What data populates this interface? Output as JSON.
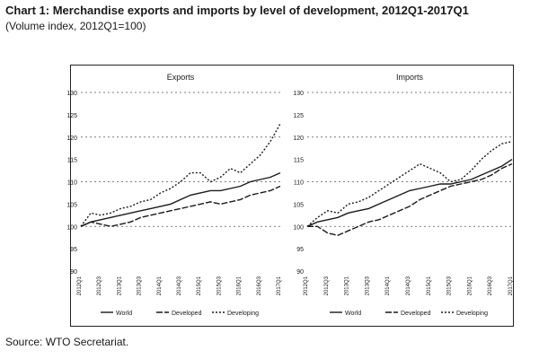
{
  "title": "Chart 1: Merchandise exports and imports by level of development, 2012Q1-2017Q1",
  "subtitle": "(Volume index, 2012Q1=100)",
  "source": "Source: WTO Secretariat.",
  "colors": {
    "line": "#1a1a1a",
    "grid": "#555555",
    "frame": "#222222"
  },
  "chart_data": [
    {
      "type": "line",
      "title": "Exports",
      "xlabel": "",
      "ylabel": "",
      "ylim": [
        90,
        130
      ],
      "yticks": [
        90,
        95,
        100,
        105,
        110,
        115,
        120,
        125,
        130
      ],
      "ytick_labels": [
        "90",
        "95",
        "100",
        "105",
        "110",
        "115",
        "120",
        "125",
        "130"
      ],
      "grid": true,
      "categories": [
        "2012Q1",
        "2012Q2",
        "2012Q3",
        "2012Q4",
        "2013Q1",
        "2013Q2",
        "2013Q3",
        "2013Q4",
        "2014Q1",
        "2014Q2",
        "2014Q3",
        "2014Q4",
        "2015Q1",
        "2015Q2",
        "2015Q3",
        "2015Q4",
        "2016Q1",
        "2016Q2",
        "2016Q3",
        "2016Q4",
        "2017Q1"
      ],
      "xtick_labels": [
        "2012Q1",
        "2012Q3",
        "2013Q1",
        "2013Q3",
        "2014Q1",
        "2014Q3",
        "2015Q1",
        "2015Q3",
        "2016Q1",
        "2016Q3",
        "2017Q1"
      ],
      "legend": "bottom",
      "series": [
        {
          "name": "World",
          "values": [
            100,
            101,
            101.5,
            102,
            102.5,
            103,
            103.5,
            104,
            104.5,
            105,
            106,
            107,
            107.5,
            108,
            108,
            108.5,
            109,
            110,
            110.5,
            111,
            112
          ]
        },
        {
          "name": "Developed",
          "values": [
            100,
            101,
            100.5,
            100,
            100.5,
            101,
            102,
            102.5,
            103,
            103.5,
            104,
            104.5,
            105,
            105.5,
            105,
            105.5,
            106,
            107,
            107.5,
            108,
            109
          ]
        },
        {
          "name": "Developing",
          "values": [
            100,
            103,
            102.5,
            103,
            104,
            104.5,
            105.5,
            106,
            107.5,
            108.5,
            110,
            112,
            112,
            110,
            111,
            113,
            112,
            114,
            116,
            119,
            123
          ]
        }
      ]
    },
    {
      "type": "line",
      "title": "Imports",
      "xlabel": "",
      "ylabel": "",
      "ylim": [
        90,
        130
      ],
      "yticks": [
        90,
        95,
        100,
        105,
        110,
        115,
        120,
        125,
        130
      ],
      "ytick_labels": [
        "90",
        "95",
        "100",
        "105",
        "110",
        "115",
        "120",
        "125",
        "130"
      ],
      "grid": true,
      "categories": [
        "2012Q1",
        "2012Q2",
        "2012Q3",
        "2012Q4",
        "2013Q1",
        "2013Q2",
        "2013Q3",
        "2013Q4",
        "2014Q1",
        "2014Q2",
        "2014Q3",
        "2014Q4",
        "2015Q1",
        "2015Q2",
        "2015Q3",
        "2015Q4",
        "2016Q1",
        "2016Q2",
        "2016Q3",
        "2016Q4",
        "2017Q1"
      ],
      "xtick_labels": [
        "2012Q1",
        "2012Q3",
        "2013Q1",
        "2013Q3",
        "2014Q1",
        "2014Q3",
        "2015Q1",
        "2015Q3",
        "2016Q1",
        "2016Q3",
        "2017Q1"
      ],
      "legend": "bottom",
      "series": [
        {
          "name": "World",
          "values": [
            100,
            101,
            101.5,
            102,
            103,
            103.5,
            104,
            105,
            106,
            107,
            108,
            108.5,
            109,
            109.5,
            109.5,
            110,
            110.5,
            111.5,
            112.5,
            113.5,
            115
          ]
        },
        {
          "name": "Developed",
          "values": [
            100,
            100,
            98.5,
            98,
            99,
            100,
            101,
            101.5,
            102.5,
            103.5,
            104.5,
            106,
            107,
            108,
            109,
            109.5,
            110,
            110.5,
            111.5,
            113,
            114
          ]
        },
        {
          "name": "Developing",
          "values": [
            100,
            102,
            103.5,
            103,
            105,
            105.5,
            106.5,
            108,
            109.5,
            111,
            112.5,
            114,
            113,
            112,
            110,
            110.5,
            112.5,
            115,
            117,
            118.5,
            119
          ]
        }
      ]
    }
  ]
}
